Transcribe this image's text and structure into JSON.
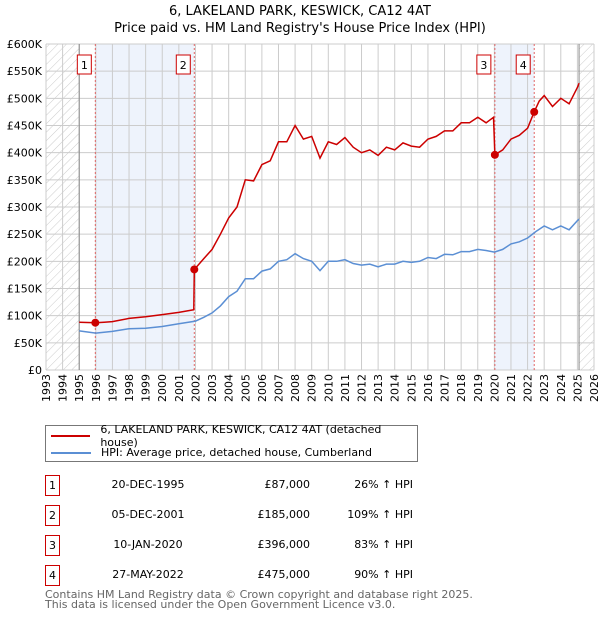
{
  "chart_data": {
    "type": "line",
    "title": "6, LAKELAND PARK, KESWICK, CA12 4AT",
    "subtitle": "Price paid vs. HM Land Registry's House Price Index (HPI)",
    "xlim": [
      1993,
      2026
    ],
    "ylim": [
      0,
      600000
    ],
    "yticks": [
      "£0",
      "£50K",
      "£100K",
      "£150K",
      "£200K",
      "£250K",
      "£300K",
      "£350K",
      "£400K",
      "£450K",
      "£500K",
      "£550K",
      "£600K"
    ],
    "xticks": [
      "1993",
      "1994",
      "1995",
      "1996",
      "1997",
      "1998",
      "1999",
      "2000",
      "2001",
      "2002",
      "2003",
      "2004",
      "2005",
      "2006",
      "2007",
      "2008",
      "2009",
      "2010",
      "2011",
      "2012",
      "2013",
      "2014",
      "2015",
      "2016",
      "2017",
      "2018",
      "2019",
      "2020",
      "2021",
      "2022",
      "2023",
      "2024",
      "2025",
      "2026"
    ],
    "series": [
      {
        "name": "6, LAKELAND PARK, KESWICK, CA12 4AT (detached house)",
        "color": "#cc0000",
        "x": [
          1995,
          1995.97,
          1996.5,
          1997,
          1998,
          1999,
          2000,
          2001,
          2001.9,
          2001.93,
          2002.5,
          2003,
          2003.5,
          2004,
          2004.5,
          2005,
          2005.5,
          2006,
          2006.5,
          2007,
          2007.5,
          2008,
          2008.5,
          2009,
          2009.5,
          2010,
          2010.5,
          2011,
          2011.5,
          2012,
          2012.5,
          2013,
          2013.5,
          2014,
          2014.5,
          2015,
          2015.5,
          2016,
          2016.5,
          2017,
          2017.5,
          2018,
          2018.5,
          2019,
          2019.5,
          2019.95,
          2020.03,
          2020.5,
          2021,
          2021.5,
          2022,
          2022.4,
          2022.7,
          2023,
          2023.5,
          2024,
          2024.5,
          2025,
          2025.1
        ],
        "y": [
          88,
          87,
          88,
          89,
          95,
          98,
          102,
          106,
          111,
          185,
          205,
          222,
          250,
          280,
          300,
          350,
          348,
          378,
          385,
          420,
          420,
          450,
          425,
          430,
          390,
          420,
          415,
          428,
          410,
          400,
          405,
          395,
          410,
          405,
          418,
          412,
          410,
          425,
          430,
          440,
          440,
          455,
          455,
          465,
          455,
          465,
          396,
          405,
          425,
          432,
          445,
          475,
          495,
          505,
          485,
          500,
          490,
          520,
          528
        ]
      },
      {
        "name": "HPI: Average price, detached house, Cumberland",
        "color": "#5b8fd4",
        "x": [
          1995,
          1996,
          1997,
          1998,
          1999,
          2000,
          2001,
          2002,
          2002.5,
          2003,
          2003.5,
          2004,
          2004.5,
          2005,
          2005.5,
          2006,
          2006.5,
          2007,
          2007.5,
          2008,
          2008.5,
          2009,
          2009.5,
          2010,
          2010.5,
          2011,
          2011.5,
          2012,
          2012.5,
          2013,
          2013.5,
          2014,
          2014.5,
          2015,
          2015.5,
          2016,
          2016.5,
          2017,
          2017.5,
          2018,
          2018.5,
          2019,
          2019.5,
          2020,
          2020.5,
          2021,
          2021.5,
          2022,
          2022.5,
          2023,
          2023.5,
          2024,
          2024.5,
          2025,
          2025.1
        ],
        "y": [
          72,
          68,
          71,
          76,
          77,
          80,
          85,
          90,
          97,
          105,
          118,
          135,
          145,
          168,
          168,
          182,
          186,
          200,
          203,
          214,
          205,
          200,
          183,
          200,
          200,
          203,
          196,
          193,
          195,
          190,
          195,
          195,
          200,
          198,
          200,
          207,
          205,
          213,
          212,
          218,
          218,
          222,
          220,
          217,
          222,
          232,
          236,
          243,
          255,
          265,
          258,
          265,
          258,
          275,
          278
        ]
      }
    ],
    "y_units": "£K",
    "sales": [
      {
        "n": "1",
        "date": "20-DEC-1995",
        "price": "£87,000",
        "hpi": "26% ↑ HPI",
        "x": 1995.97,
        "y": 87
      },
      {
        "n": "2",
        "date": "05-DEC-2001",
        "price": "£185,000",
        "hpi": "109% ↑ HPI",
        "x": 2001.93,
        "y": 185
      },
      {
        "n": "3",
        "date": "10-JAN-2020",
        "price": "£396,000",
        "hpi": "83% ↑ HPI",
        "x": 2020.03,
        "y": 396
      },
      {
        "n": "4",
        "date": "27-MAY-2022",
        "price": "£475,000",
        "hpi": "90% ↑ HPI",
        "x": 2022.4,
        "y": 475
      }
    ],
    "shaded_periods": [
      [
        1995.97,
        2001.93
      ],
      [
        2020.03,
        2022.4
      ]
    ],
    "hatched_periods": [
      [
        1993,
        1995
      ],
      [
        2025.1,
        2026
      ]
    ],
    "legend_position": "below"
  },
  "footer": [
    "Contains HM Land Registry data © Crown copyright and database right 2025.",
    "This data is licensed under the Open Government Licence v3.0."
  ]
}
